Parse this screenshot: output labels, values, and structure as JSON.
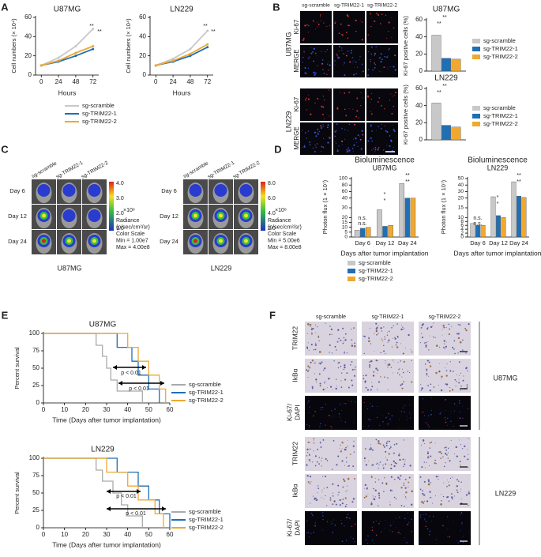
{
  "figure": {
    "panel_labels": [
      "A",
      "B",
      "C",
      "D",
      "E",
      "F"
    ],
    "B": {
      "columns": [
        "sg-scramble",
        "sg-TRIM22-1",
        "sg-TRIM22-2"
      ],
      "groups": [
        "U87MG",
        "LN229"
      ],
      "stains": [
        "Ki-67",
        "MERGE"
      ]
    },
    "C": {
      "columns": [
        "sg-scramble",
        "sg-TRIM22-1",
        "sg-TRIM22-2"
      ],
      "rows": [
        "Day 6",
        "Day 12",
        "Day 24"
      ],
      "groups": [
        {
          "name": "U87MG",
          "colorbar_ticks": [
            "4.0",
            "3.0",
            "2.0",
            "1.0"
          ],
          "multiplier": "×10⁸",
          "legend": [
            "Radiance",
            "(p/sec/cm²/sr)",
            "Color Scale",
            "Min = 1.00e7",
            "Max = 4.00e8"
          ]
        },
        {
          "name": "LN229",
          "colorbar_ticks": [
            "8.0",
            "6.0",
            "4.0",
            "2.0"
          ],
          "multiplier": "×10⁸",
          "legend": [
            "Radiance",
            "(p/sec/cm²/sr)",
            "Color Scale",
            "Min = 5.00e6",
            "Max = 8.00e8"
          ]
        }
      ]
    },
    "F": {
      "columns": [
        "sg-scramble",
        "sg-TRIM22-1",
        "sg-TRIM22-2"
      ],
      "rows": [
        "TRIM22",
        "IkBα"
      ],
      "stain_red": "Ki-67/",
      "stain_blue": "DAPI",
      "groups": [
        "U87MG",
        "LN229"
      ]
    }
  },
  "chart_data": [
    {
      "type": "line",
      "title": "U87MG",
      "y_label": "Cell numbers (× 10⁴)",
      "x_label": "Hours",
      "x": [
        0,
        24,
        48,
        72
      ],
      "xlim": [
        -8,
        80
      ],
      "xticks": [
        0,
        24,
        48,
        72
      ],
      "ylim": [
        0,
        60
      ],
      "yticks": [
        0,
        20,
        40,
        60
      ],
      "series": [
        {
          "name": "sg-scramble",
          "color": "#c8c8c8",
          "values": [
            10,
            18,
            30,
            48
          ]
        },
        {
          "name": "sg-TRIM22-1",
          "color": "#1f6fb5",
          "values": [
            10,
            14,
            20,
            27
          ]
        },
        {
          "name": "sg-TRIM22-2",
          "color": "#f0a830",
          "values": [
            10,
            15,
            23,
            30
          ]
        }
      ],
      "annotations": [
        "**",
        "**"
      ]
    },
    {
      "type": "line",
      "title": "LN229",
      "y_label": "Cell numbers (× 10⁴)",
      "x_label": "Hours",
      "x": [
        0,
        24,
        48,
        72
      ],
      "xlim": [
        -8,
        80
      ],
      "xticks": [
        0,
        24,
        48,
        72
      ],
      "ylim": [
        0,
        60
      ],
      "yticks": [
        0,
        20,
        40,
        60
      ],
      "series": [
        {
          "color": "#c8c8c8",
          "values": [
            10,
            17,
            27,
            46
          ]
        },
        {
          "color": "#1f6fb5",
          "values": [
            10,
            14,
            20,
            29
          ]
        },
        {
          "color": "#f0a830",
          "values": [
            10,
            15,
            22,
            32
          ]
        }
      ],
      "annotations": [
        "**",
        "**"
      ]
    },
    {
      "type": "bar",
      "title": "U87MG",
      "y_label": "Ki-67 positive cells (%)",
      "categories": [
        null
      ],
      "ylim": [
        0,
        60
      ],
      "yticks": [
        0,
        20,
        40,
        60
      ],
      "series": [
        {
          "name": "sg-scramble",
          "color": "#c8c8c8",
          "values": [
            42
          ]
        },
        {
          "name": "sg-TRIM22-1",
          "color": "#1f6fb5",
          "values": [
            15
          ]
        },
        {
          "name": "sg-TRIM22-2",
          "color": "#f0a830",
          "values": [
            14
          ]
        }
      ],
      "annotations": [
        "**",
        "**"
      ]
    },
    {
      "type": "bar",
      "title": "LN229",
      "y_label": "Ki-67 positive cells (%)",
      "categories": [
        null
      ],
      "ylim": [
        0,
        60
      ],
      "yticks": [
        0,
        20,
        40,
        60
      ],
      "series": [
        {
          "name": "sg-scramble",
          "color": "#c8c8c8",
          "values": [
            43
          ]
        },
        {
          "name": "sg-TRIM22-1",
          "color": "#1f6fb5",
          "values": [
            17
          ]
        },
        {
          "name": "sg-TRIM22-2",
          "color": "#f0a830",
          "values": [
            15
          ]
        }
      ],
      "annotations": [
        "**",
        "**"
      ]
    },
    {
      "type": "bar",
      "title": "Bioluminescence",
      "subtitle": "U87MG",
      "y_label": "Photon flux (1 × 10⁷)",
      "x_label": "Days after tumor implantation",
      "categories": [
        "Day 6",
        "Day 12",
        "Day 24"
      ],
      "ylim": [
        0,
        100
      ],
      "yscale_segments": [
        [
          0,
          20
        ],
        [
          20,
          40
        ],
        [
          40,
          100
        ]
      ],
      "yticks": [
        0,
        5,
        10,
        15,
        20,
        30,
        40,
        60,
        80,
        100
      ],
      "series": [
        {
          "name": "sg-scramble",
          "color": "#c8c8c8",
          "values": [
            7,
            28,
            85
          ]
        },
        {
          "name": "sg-TRIM22-1",
          "color": "#1f6fb5",
          "values": [
            9,
            11,
            40
          ]
        },
        {
          "name": "sg-TRIM22-2",
          "color": "#f0a830",
          "values": [
            10,
            12,
            40
          ]
        }
      ],
      "annotations": [
        "n.s.",
        "n.s.",
        "*",
        "*",
        "**",
        "**"
      ]
    },
    {
      "type": "bar",
      "title": "Bioluminescence",
      "subtitle": "LN229",
      "y_label": "Photon flux (1 × 10⁷)",
      "x_label": "Days after tumor implantation",
      "categories": [
        "Day 6",
        "Day 12",
        "Day 24"
      ],
      "ylim": [
        0,
        50
      ],
      "yscale_segments": [
        [
          0,
          10
        ],
        [
          10,
          20
        ],
        [
          20,
          50
        ]
      ],
      "yticks": [
        0,
        2,
        4,
        6,
        8,
        10,
        15,
        20,
        30,
        40,
        50
      ],
      "series": [
        {
          "color": "#c8c8c8",
          "values": [
            7,
            22,
            45
          ]
        },
        {
          "color": "#1f6fb5",
          "values": [
            6,
            11,
            23
          ]
        },
        {
          "color": "#f0a830",
          "values": [
            6,
            10,
            21
          ]
        }
      ],
      "annotations": [
        "n.s.",
        "n.s.",
        "*",
        "*",
        "**",
        "**"
      ]
    },
    {
      "type": "line",
      "title": "U87MG",
      "y_label": "Percent survival",
      "x_label": "Time (Days after tumor implantation)",
      "xlim": [
        0,
        60
      ],
      "xticks": [
        0,
        10,
        20,
        30,
        40,
        50,
        60
      ],
      "ylim": [
        0,
        100
      ],
      "yticks": [
        0,
        25,
        50,
        75,
        100
      ],
      "series": [
        {
          "name": "sg-scramble",
          "color": "#aaaaaa",
          "x": [
            0,
            25,
            25,
            28,
            28,
            30,
            30,
            32,
            32,
            35,
            35,
            47,
            47
          ],
          "values": [
            100,
            100,
            83,
            83,
            67,
            67,
            50,
            50,
            33,
            33,
            17,
            17,
            0
          ]
        },
        {
          "name": "sg-TRIM22-1",
          "color": "#1f6fb5",
          "x": [
            0,
            35,
            35,
            42,
            42,
            45,
            45,
            50,
            50,
            55,
            55
          ],
          "values": [
            100,
            100,
            80,
            80,
            60,
            60,
            40,
            40,
            20,
            20,
            0
          ]
        },
        {
          "name": "sg-TRIM22-2",
          "color": "#f0a830",
          "x": [
            0,
            40,
            40,
            45,
            45,
            50,
            50,
            55,
            55,
            58,
            58
          ],
          "values": [
            100,
            100,
            80,
            80,
            60,
            60,
            40,
            40,
            20,
            20,
            0
          ]
        }
      ],
      "annotations": [
        "p < 0.01",
        "p < 0.01"
      ]
    },
    {
      "type": "line",
      "title": "LN229",
      "y_label": "Percent survival",
      "x_label": "Time (Days after tumor implantation)",
      "xlim": [
        0,
        60
      ],
      "xticks": [
        0,
        10,
        20,
        30,
        40,
        50,
        60
      ],
      "ylim": [
        0,
        100
      ],
      "yticks": [
        0,
        25,
        50,
        75,
        100
      ],
      "series": [
        {
          "name": "sg-scramble",
          "color": "#aaaaaa",
          "x": [
            0,
            25,
            25,
            28,
            28,
            33,
            33,
            37,
            37,
            40,
            40,
            47,
            47
          ],
          "values": [
            100,
            100,
            83,
            83,
            67,
            67,
            50,
            50,
            33,
            33,
            17,
            17,
            0
          ]
        },
        {
          "name": "sg-TRIM22-1",
          "color": "#1f6fb5",
          "x": [
            0,
            35,
            35,
            45,
            45,
            50,
            50,
            55,
            55,
            60,
            60
          ],
          "values": [
            100,
            100,
            80,
            80,
            60,
            60,
            40,
            40,
            20,
            20,
            0
          ]
        },
        {
          "name": "sg-TRIM22-2",
          "color": "#f0a830",
          "x": [
            0,
            30,
            30,
            40,
            40,
            45,
            45,
            53,
            53,
            57,
            57
          ],
          "values": [
            100,
            100,
            80,
            80,
            60,
            60,
            40,
            40,
            20,
            20,
            0
          ]
        }
      ],
      "annotations": [
        "p < 0.01",
        "p < 0.01"
      ]
    }
  ]
}
